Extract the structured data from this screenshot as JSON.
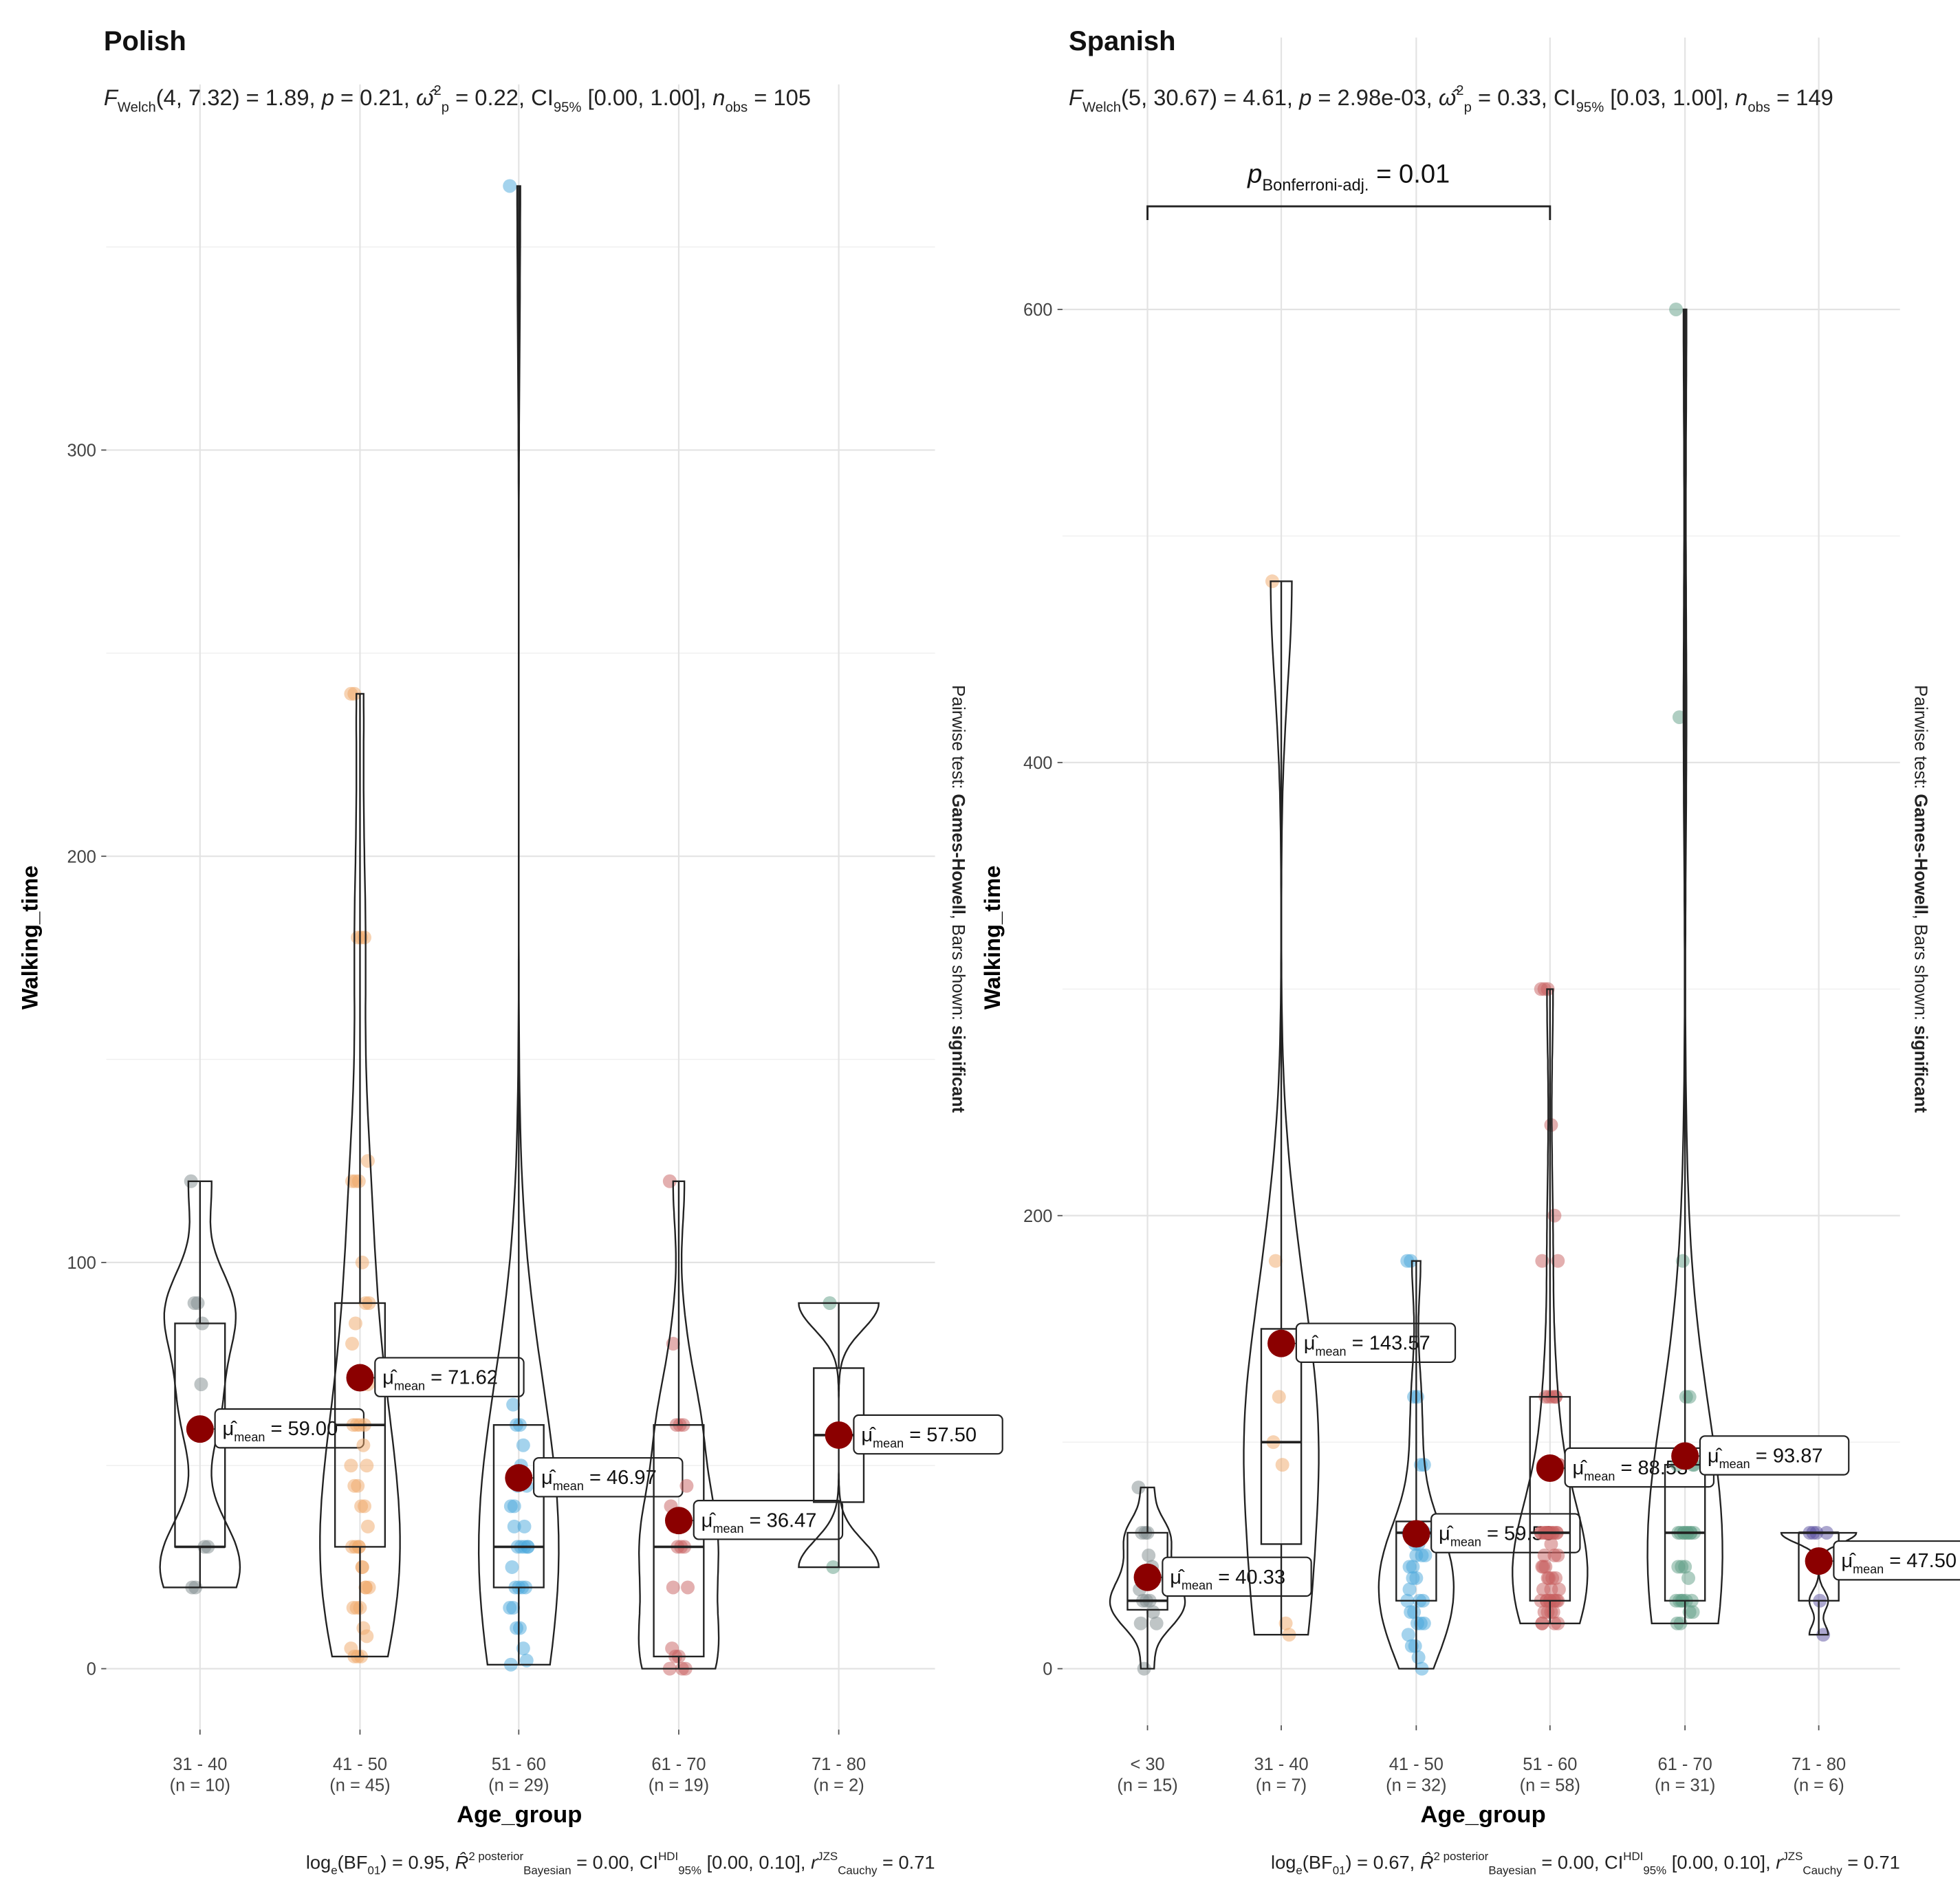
{
  "chart_data": [
    {
      "type": "violin-box-scatter",
      "title": "Polish",
      "subtitle": [
        {
          "t": "F",
          "i": true
        },
        {
          "t": "Welch",
          "sub": true
        },
        {
          "t": "(4, 7.32) = 1.89, "
        },
        {
          "t": "p",
          "i": true
        },
        {
          "t": " = 0.21, "
        },
        {
          "t": "ω̂",
          "i": true
        },
        {
          "t": "2",
          "sup": true
        },
        {
          "t": "p",
          "sub": true
        },
        {
          "t": " = 0.22, CI"
        },
        {
          "t": "95%",
          "sub": true
        },
        {
          "t": " [0.00, 1.00], "
        },
        {
          "t": "n",
          "i": true
        },
        {
          "t": "obs",
          "sub": true
        },
        {
          "t": " = 105"
        }
      ],
      "caption": [
        {
          "t": "log"
        },
        {
          "t": "e",
          "sub": true
        },
        {
          "t": "(BF"
        },
        {
          "t": "01",
          "sub": true
        },
        {
          "t": ") = 0.95, "
        },
        {
          "t": "R̂",
          "i": true
        },
        {
          "t": "2 posterior",
          "sup": true
        },
        {
          "t": "Bayesian",
          "sub": true
        },
        {
          "t": " = 0.00, CI"
        },
        {
          "t": "HDI",
          "sup": true
        },
        {
          "t": "95%",
          "sub": true
        },
        {
          "t": " [0.00, 0.10], "
        },
        {
          "t": "r",
          "i": true
        },
        {
          "t": "JZS",
          "sup": true
        },
        {
          "t": "Cauchy",
          "sub": true
        },
        {
          "t": " = 0.71"
        }
      ],
      "xlabel": "Age_group",
      "ylabel": "Walking_time",
      "side_note": [
        "Pairwise test: ",
        "Games-Howell",
        ", Bars shown: ",
        "significant"
      ],
      "yticks": [
        0,
        100,
        200,
        300
      ],
      "ylim": [
        -15,
        390
      ],
      "groups": [
        {
          "label": "31 - 40",
          "n_label": "(n = 10)",
          "color": "#7f8c8d",
          "mean": 59.0,
          "mean_label": "59.00",
          "box": [
            20,
            30,
            30,
            85,
            120
          ],
          "points": [
            120,
            90,
            90,
            70,
            30,
            30,
            20,
            20,
            60,
            85
          ]
        },
        {
          "label": "41 - 50",
          "n_label": "(n = 45)",
          "color": "#f0a868",
          "mean": 71.62,
          "mean_label": "71.62",
          "box": [
            3,
            30,
            60,
            90,
            240
          ],
          "points": [
            240,
            240,
            180,
            180,
            180,
            125,
            120,
            120,
            120,
            100,
            90,
            90,
            60,
            60,
            60,
            55,
            50,
            50,
            45,
            45,
            40,
            40,
            35,
            30,
            30,
            30,
            25,
            20,
            20,
            15,
            15,
            15,
            10,
            8,
            5,
            3,
            3,
            3,
            60,
            70,
            80,
            85,
            30,
            25,
            20
          ]
        },
        {
          "label": "51 - 60",
          "n_label": "(n = 29)",
          "color": "#4aa8dc",
          "mean": 46.97,
          "mean_label": "46.97",
          "box": [
            1,
            20,
            30,
            60,
            365
          ],
          "points": [
            365,
            65,
            60,
            60,
            55,
            45,
            40,
            35,
            30,
            30,
            30,
            30,
            25,
            20,
            20,
            20,
            20,
            15,
            15,
            10,
            10,
            5,
            2,
            1,
            40,
            45,
            50,
            35,
            30
          ]
        },
        {
          "label": "61 - 70",
          "n_label": "(n = 19)",
          "color": "#c86060",
          "mean": 36.47,
          "mean_label": "36.47",
          "box": [
            0,
            3,
            30,
            60,
            120
          ],
          "points": [
            120,
            80,
            60,
            60,
            60,
            45,
            40,
            35,
            30,
            30,
            30,
            20,
            5,
            3,
            3,
            0,
            0,
            0,
            20
          ]
        },
        {
          "label": "71 - 80",
          "n_label": "(n = 2)",
          "color": "#5f9e85",
          "mean": 57.5,
          "mean_label": "57.50",
          "box": [
            25,
            41,
            57.5,
            74,
            90
          ],
          "points": [
            90,
            25
          ]
        }
      ],
      "mean_prefix": "μ̂",
      "mean_sub": "mean",
      "mean_eq": " = "
    },
    {
      "type": "violin-box-scatter",
      "title": "Spanish",
      "subtitle": [
        {
          "t": "F",
          "i": true
        },
        {
          "t": "Welch",
          "sub": true
        },
        {
          "t": "(5, 30.67) = 4.61, "
        },
        {
          "t": "p",
          "i": true
        },
        {
          "t": " = 2.98e-03, "
        },
        {
          "t": "ω̂",
          "i": true
        },
        {
          "t": "2",
          "sup": true
        },
        {
          "t": "p",
          "sub": true
        },
        {
          "t": " = 0.33, CI"
        },
        {
          "t": "95%",
          "sub": true
        },
        {
          "t": " [0.03, 1.00], "
        },
        {
          "t": "n",
          "i": true
        },
        {
          "t": "obs",
          "sub": true
        },
        {
          "t": " = 149"
        }
      ],
      "caption": [
        {
          "t": "log"
        },
        {
          "t": "e",
          "sub": true
        },
        {
          "t": "(BF"
        },
        {
          "t": "01",
          "sub": true
        },
        {
          "t": ") = 0.67, "
        },
        {
          "t": "R̂",
          "i": true
        },
        {
          "t": "2 posterior",
          "sup": true
        },
        {
          "t": "Bayesian",
          "sub": true
        },
        {
          "t": " = 0.00, CI"
        },
        {
          "t": "HDI",
          "sup": true
        },
        {
          "t": "95%",
          "sub": true
        },
        {
          "t": " [0.00, 0.10], "
        },
        {
          "t": "r",
          "i": true
        },
        {
          "t": "JZS",
          "sup": true
        },
        {
          "t": "Cauchy",
          "sub": true
        },
        {
          "t": " = 0.71"
        }
      ],
      "xlabel": "Age_group",
      "ylabel": "Walking_time",
      "side_note": [
        "Pairwise test: ",
        "Games-Howell",
        ", Bars shown: ",
        "significant"
      ],
      "yticks": [
        0,
        200,
        400,
        600
      ],
      "ylim": [
        -25,
        720
      ],
      "bracket": {
        "from": "< 30",
        "to": "51 - 60",
        "label_p": "p",
        "label_sub": "Bonferroni-adj.",
        "label_val": " = 0.01"
      },
      "groups": [
        {
          "label": "< 30",
          "n_label": "(n = 15)",
          "color": "#7f8c8d",
          "mean": 40.33,
          "mean_label": "40.33",
          "box": [
            0,
            26,
            30,
            60,
            80
          ],
          "points": [
            80,
            60,
            60,
            50,
            45,
            40,
            35,
            30,
            30,
            30,
            25,
            20,
            20,
            0,
            60
          ]
        },
        {
          "label": "31 - 40",
          "n_label": "(n = 7)",
          "color": "#f0a868",
          "mean": 143.57,
          "mean_label": "143.57",
          "box": [
            15,
            55,
            100,
            150,
            480
          ],
          "points": [
            480,
            180,
            120,
            90,
            20,
            15,
            100
          ]
        },
        {
          "label": "41 - 50",
          "n_label": "(n = 32)",
          "color": "#4aa8dc",
          "mean": 59.53,
          "mean_label": "59.53",
          "box": [
            0,
            30,
            60,
            65,
            180
          ],
          "points": [
            180,
            180,
            120,
            120,
            90,
            90,
            60,
            60,
            55,
            55,
            50,
            50,
            45,
            45,
            40,
            30,
            30,
            30,
            25,
            25,
            20,
            20,
            20,
            15,
            10,
            10,
            5,
            0,
            60,
            35,
            40,
            50
          ]
        },
        {
          "label": "51 - 60",
          "n_label": "(n = 58)",
          "color": "#c86060",
          "mean": 88.53,
          "mean_label": "88.53",
          "box": [
            20,
            30,
            60,
            120,
            300
          ],
          "points": [
            300,
            300,
            300,
            240,
            200,
            180,
            180,
            120,
            120,
            120,
            120,
            90,
            90,
            60,
            60,
            60,
            60,
            60,
            60,
            60,
            55,
            50,
            50,
            45,
            45,
            40,
            40,
            40,
            35,
            35,
            30,
            30,
            30,
            30,
            30,
            25,
            25,
            25,
            20,
            20,
            20,
            60,
            60,
            60,
            120,
            90,
            45,
            30,
            30,
            25,
            60,
            60,
            50,
            40,
            35,
            30,
            30,
            20
          ]
        },
        {
          "label": "61 - 70",
          "n_label": "(n = 31)",
          "color": "#5f9e85",
          "mean": 93.87,
          "mean_label": "93.87",
          "box": [
            20,
            30,
            60,
            90,
            600
          ],
          "points": [
            600,
            420,
            180,
            120,
            120,
            90,
            90,
            60,
            60,
            60,
            60,
            60,
            60,
            45,
            45,
            40,
            30,
            30,
            30,
            30,
            30,
            25,
            25,
            20,
            20,
            60,
            60,
            60,
            90,
            45,
            30
          ]
        },
        {
          "label": "71 - 80",
          "n_label": "(n = 6)",
          "color": "#5a4fa0",
          "mean": 47.5,
          "mean_label": "47.50",
          "box": [
            15,
            30,
            60,
            60,
            60
          ],
          "points": [
            60,
            60,
            60,
            30,
            15,
            60
          ]
        }
      ],
      "mean_prefix": "μ̂",
      "mean_sub": "mean",
      "mean_eq": " = "
    }
  ]
}
